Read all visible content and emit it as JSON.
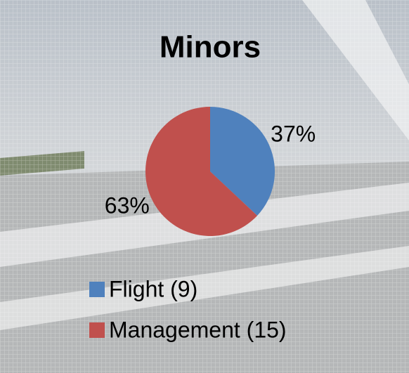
{
  "chart_data": {
    "type": "pie",
    "title": "Minors",
    "categories": [
      "Flight (9)",
      "Management (15)"
    ],
    "values": [
      37,
      63
    ],
    "value_labels": [
      "37%",
      "63%"
    ],
    "colors": [
      "#4f81bd",
      "#c0504d"
    ],
    "legend": "bottom"
  }
}
